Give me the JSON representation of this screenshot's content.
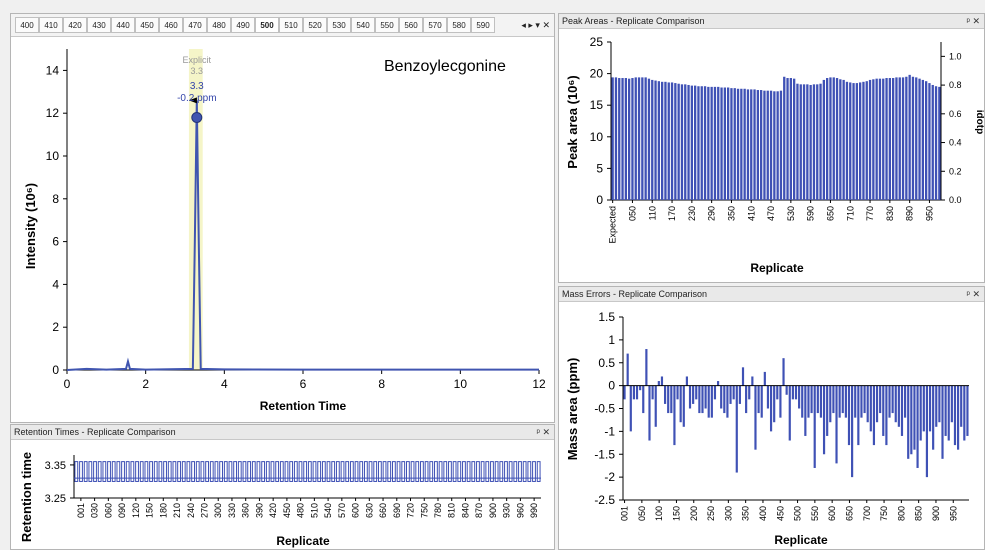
{
  "tabs": {
    "items": [
      "400",
      "410",
      "420",
      "430",
      "440",
      "450",
      "460",
      "470",
      "480",
      "490",
      "500",
      "510",
      "520",
      "530",
      "540",
      "550",
      "560",
      "570",
      "580",
      "590"
    ],
    "active_index": 10,
    "controls": "◂ ▸ ▾ ✕"
  },
  "chromatogram": {
    "compound": "Benzoylecgonine",
    "xlabel": "Retention Time",
    "ylabel": "Intensity (10⁶)",
    "peak_label_explicit": "Explicit",
    "peak_label_explicit_value": "3.3",
    "peak_label_rt": "3.3",
    "peak_label_ppm": "-0.2 ppm",
    "xticks": [
      "0",
      "2",
      "4",
      "6",
      "8",
      "10",
      "12"
    ],
    "yticks": [
      "0",
      "2",
      "4",
      "6",
      "8",
      "10",
      "12",
      "14"
    ]
  },
  "peak_areas": {
    "title": "Peak Areas - Replicate Comparison",
    "controls": "ᵖ ✕",
    "ylabel": "Peak area (10⁶)",
    "y2label": "idotp",
    "xlabel": "Replicate",
    "yticks": [
      "0",
      "5",
      "10",
      "15",
      "20",
      "25"
    ],
    "y2ticks": [
      "0.0",
      "0.2",
      "0.4",
      "0.6",
      "0.8",
      "1.0"
    ],
    "xticks": [
      "Expected",
      "050",
      "110",
      "170",
      "230",
      "290",
      "350",
      "410",
      "470",
      "530",
      "590",
      "650",
      "710",
      "770",
      "830",
      "890",
      "950"
    ]
  },
  "mass_errors": {
    "title": "Mass Errors - Replicate Comparison",
    "controls": "ᵖ ✕",
    "ylabel": "Mass area (ppm)",
    "xlabel": "Replicate",
    "yticks": [
      "1.5",
      "1",
      "0.5",
      "0",
      "-0.5",
      "-1",
      "-1.5",
      "-2",
      "-2.5"
    ],
    "xticks": [
      "001",
      "050",
      "100",
      "150",
      "200",
      "250",
      "300",
      "350",
      "400",
      "450",
      "500",
      "550",
      "600",
      "650",
      "700",
      "750",
      "800",
      "850",
      "900",
      "950"
    ]
  },
  "retention_times": {
    "title": "Retention Times - Replicate Comparison",
    "controls": "ᵖ ✕",
    "ylabel": "Retention time",
    "xlabel": "Replicate",
    "yticks": [
      "3.35",
      "3.25"
    ],
    "xticks": [
      "001",
      "030",
      "060",
      "090",
      "120",
      "150",
      "180",
      "210",
      "240",
      "270",
      "300",
      "330",
      "360",
      "390",
      "420",
      "450",
      "480",
      "510",
      "540",
      "570",
      "600",
      "630",
      "660",
      "690",
      "720",
      "750",
      "780",
      "810",
      "840",
      "870",
      "900",
      "930",
      "960",
      "990"
    ]
  },
  "colors": {
    "bar": "#3f51b5",
    "peak_highlight": "#f5f5c8",
    "marker": "#4055b0"
  },
  "chart_data": [
    {
      "type": "line",
      "title": "Benzoylecgonine",
      "xlabel": "Retention Time",
      "ylabel": "Intensity (10⁶)",
      "xlim": [
        0,
        12
      ],
      "ylim": [
        0,
        15
      ],
      "x": [
        0,
        0.5,
        1.0,
        1.5,
        1.55,
        1.6,
        2.0,
        3.2,
        3.25,
        3.3,
        3.35,
        3.4,
        4.0,
        6.0,
        8.0,
        10.0,
        12.0
      ],
      "y": [
        0,
        0.05,
        0.02,
        0.05,
        0.4,
        0.05,
        0.02,
        0.05,
        6.0,
        12.6,
        6.0,
        0.05,
        0.03,
        0.02,
        0.02,
        0.02,
        0.02
      ]
    },
    {
      "type": "bar",
      "title": "Peak Areas - Replicate Comparison",
      "xlabel": "Replicate",
      "ylabel": "Peak area (10⁶)",
      "ylim": [
        0,
        25
      ],
      "y2lim": [
        0,
        1.1
      ],
      "values": [
        19.4,
        19.4,
        19.3,
        19.3,
        19.3,
        19.2,
        19.3,
        19.4,
        19.4,
        19.4,
        19.4,
        19.2,
        19.0,
        18.9,
        18.8,
        18.7,
        18.7,
        18.6,
        18.6,
        18.5,
        18.4,
        18.3,
        18.3,
        18.2,
        18.1,
        18.1,
        18.0,
        18.0,
        18.0,
        17.9,
        17.9,
        17.9,
        17.9,
        17.8,
        17.8,
        17.8,
        17.7,
        17.7,
        17.6,
        17.6,
        17.6,
        17.5,
        17.5,
        17.5,
        17.4,
        17.4,
        17.3,
        17.3,
        17.3,
        17.2,
        17.2,
        17.3,
        19.5,
        19.3,
        19.3,
        19.2,
        18.4,
        18.3,
        18.3,
        18.3,
        18.2,
        18.3,
        18.3,
        18.4,
        19.0,
        19.3,
        19.4,
        19.4,
        19.3,
        19.1,
        19.0,
        18.7,
        18.6,
        18.5,
        18.5,
        18.6,
        18.7,
        18.8,
        19.0,
        19.1,
        19.2,
        19.2,
        19.2,
        19.3,
        19.3,
        19.3,
        19.4,
        19.4,
        19.4,
        19.5,
        19.8,
        19.5,
        19.4,
        19.2,
        19.0,
        18.8,
        18.5,
        18.2,
        18.0,
        17.9
      ]
    },
    {
      "type": "bar",
      "title": "Mass Errors - Replicate Comparison",
      "xlabel": "Replicate",
      "ylabel": "Mass area (ppm)",
      "ylim": [
        -2.5,
        1.5
      ],
      "values": [
        -0.3,
        0.7,
        -1.0,
        -0.3,
        -0.3,
        -0.1,
        -0.6,
        0.8,
        -1.2,
        -0.3,
        -0.9,
        0.1,
        0.2,
        -0.4,
        -0.6,
        -0.6,
        -1.3,
        -0.3,
        -0.8,
        -0.9,
        0.2,
        -0.5,
        -0.4,
        -0.3,
        -0.6,
        -0.6,
        -0.5,
        -0.7,
        -0.7,
        -0.3,
        0.1,
        -0.5,
        -0.6,
        -0.7,
        -0.4,
        -0.3,
        -1.9,
        -0.4,
        0.4,
        -0.6,
        -0.3,
        0.2,
        -1.4,
        -0.6,
        -0.7,
        0.3,
        -0.5,
        -1.0,
        -0.8,
        -0.3,
        -0.7,
        0.6,
        -0.2,
        -1.2,
        -0.3,
        -0.3,
        -0.5,
        -0.7,
        -1.1,
        -0.7,
        -0.6,
        -1.8,
        -0.6,
        -0.7,
        -1.5,
        -1.1,
        -0.8,
        -0.6,
        -1.7,
        -0.7,
        -0.6,
        -0.7,
        -1.3,
        -2.0,
        -0.7,
        -1.3,
        -0.7,
        -0.6,
        -0.8,
        -1.0,
        -1.3,
        -0.8,
        -0.6,
        -1.1,
        -1.3,
        -0.7,
        -0.6,
        -0.8,
        -0.9,
        -1.1,
        -0.7,
        -1.6,
        -1.5,
        -1.4,
        -1.8,
        -1.2,
        -1.0,
        -2.0,
        -1.0,
        -1.4,
        -0.9,
        -0.8,
        -1.6,
        -1.1,
        -1.2,
        -0.8,
        -1.3,
        -1.4,
        -0.9,
        -1.2,
        -1.1
      ]
    },
    {
      "type": "bar",
      "title": "Retention Times - Replicate Comparison",
      "xlabel": "Replicate",
      "ylabel": "Retention time",
      "ylim": [
        3.25,
        3.38
      ],
      "values_range": [
        3.3,
        3.36
      ]
    }
  ]
}
